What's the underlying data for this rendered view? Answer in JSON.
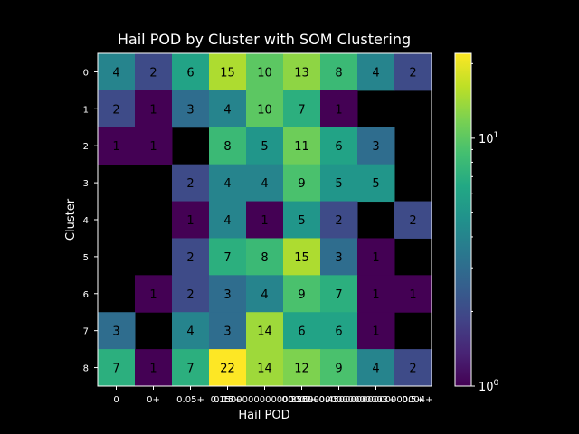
{
  "chart_data": {
    "type": "heatmap",
    "title": "Hail POD by Cluster with SOM Clustering",
    "xlabel": "Hail POD",
    "ylabel": "Cluster",
    "x_categories": [
      "0",
      "0+",
      "0.05+",
      "0.15+",
      "0.1500000000000002+",
      "0.25+",
      "0.35000000000000003+",
      "0.45000000000000004+",
      "0.5+"
    ],
    "y_categories": [
      "0",
      "1",
      "2",
      "3",
      "4",
      "5",
      "6",
      "7",
      "8"
    ],
    "values": [
      [
        4,
        2,
        6,
        15,
        10,
        13,
        8,
        4,
        2
      ],
      [
        2,
        1,
        3,
        4,
        10,
        7,
        1,
        null,
        null
      ],
      [
        1,
        1,
        null,
        8,
        5,
        11,
        6,
        3,
        null
      ],
      [
        null,
        null,
        2,
        4,
        4,
        9,
        5,
        5,
        null
      ],
      [
        null,
        null,
        1,
        4,
        1,
        5,
        2,
        null,
        2
      ],
      [
        null,
        null,
        2,
        7,
        8,
        15,
        3,
        1,
        null
      ],
      [
        null,
        1,
        2,
        3,
        4,
        9,
        7,
        1,
        1
      ],
      [
        3,
        null,
        4,
        3,
        14,
        6,
        6,
        1,
        null
      ],
      [
        7,
        1,
        7,
        22,
        14,
        12,
        9,
        4,
        2
      ]
    ],
    "colormap": "viridis",
    "color_scale": "log",
    "colorbar": {
      "min": 1,
      "max": 22,
      "major_tick_labels": [
        "10^0",
        "10^1"
      ]
    },
    "missing_color": "#000000",
    "background": "#000000"
  }
}
